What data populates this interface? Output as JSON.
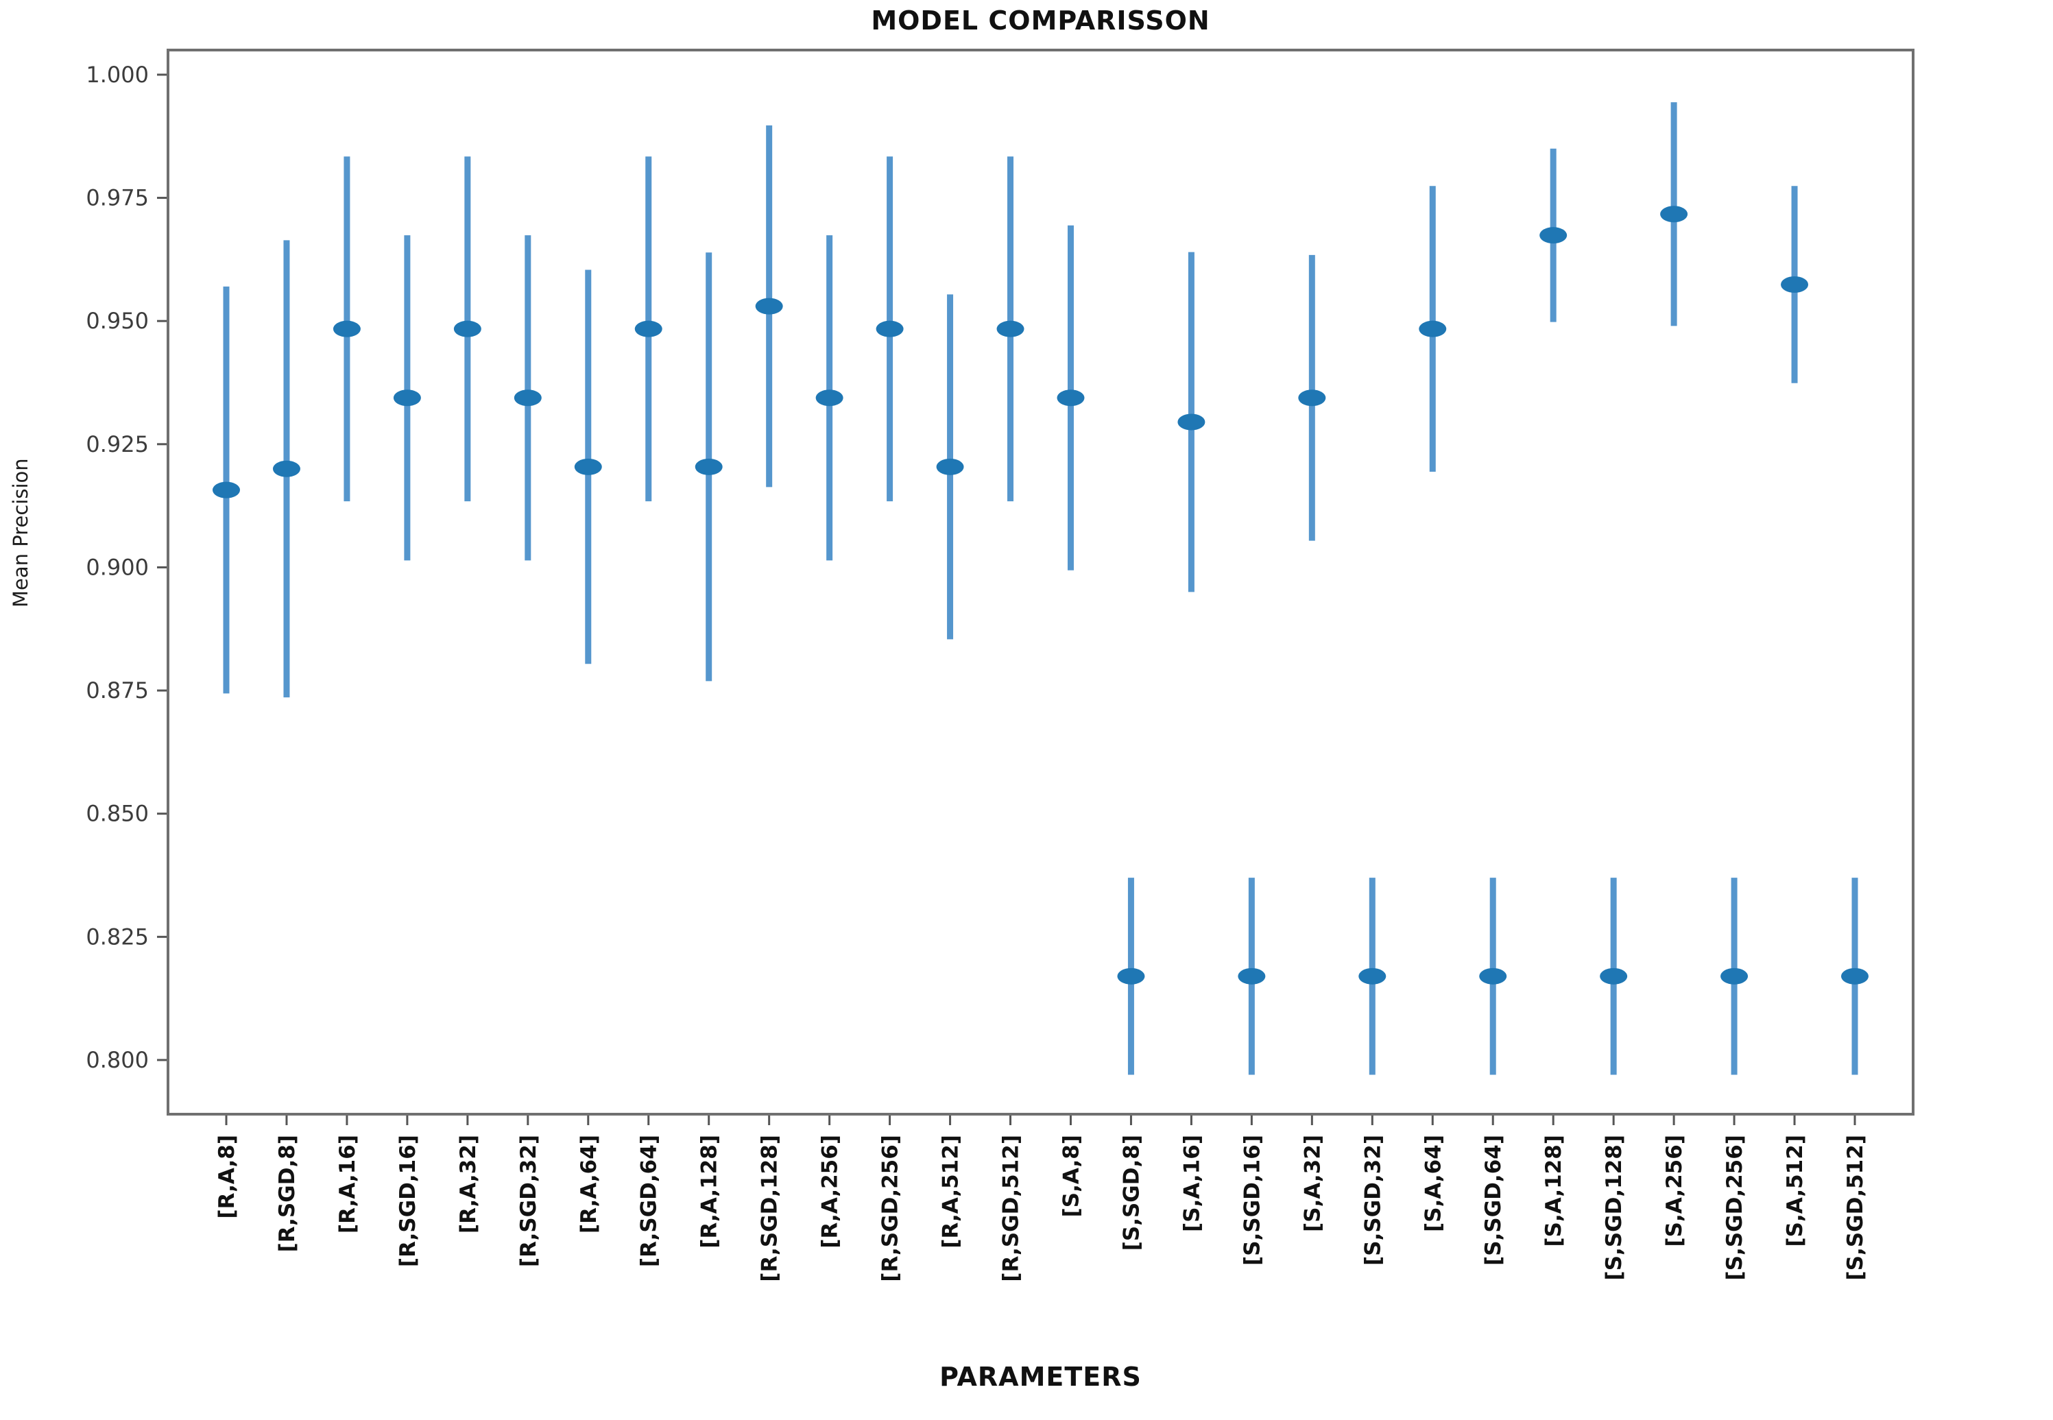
{
  "page": {
    "background": "#ffffff"
  },
  "chart_data": {
    "type": "errorbar",
    "title": "MODEL COMPARISSON",
    "xlabel": "PARAMETERS",
    "ylabel": "Mean Precision",
    "legend_position": "none",
    "grid": false,
    "categories": [
      "[R,A,8]",
      "[R,SGD,8]",
      "[R,A,16]",
      "[R,SGD,16]",
      "[R,A,32]",
      "[R,SGD,32]",
      "[R,A,64]",
      "[R,SGD,64]",
      "[R,A,128]",
      "[R,SGD,128]",
      "[R,A,256]",
      "[R,SGD,256]",
      "[R,A,512]",
      "[R,SGD,512]",
      "[S,A,8]",
      "[S,SGD,8]",
      "[S,A,16]",
      "[S,SGD,16]",
      "[S,A,32]",
      "[S,SGD,32]",
      "[S,A,64]",
      "[S,SGD,64]",
      "[S,A,128]",
      "[S,SGD,128]",
      "[S,A,256]",
      "[S,SGD,256]",
      "[S,A,512]",
      "[S,SGD,512]"
    ],
    "series": [
      {
        "name": "Mean Precision",
        "values": [
          0.9157,
          0.92,
          0.9484,
          0.9344,
          0.9484,
          0.9344,
          0.9204,
          0.9484,
          0.9204,
          0.953,
          0.9344,
          0.9484,
          0.9204,
          0.9484,
          0.9344,
          0.817,
          0.9295,
          0.817,
          0.9344,
          0.817,
          0.9484,
          0.817,
          0.9674,
          0.817,
          0.9717,
          0.817,
          0.9574,
          0.817
        ],
        "err_low": [
          0.8744,
          0.8736,
          0.9134,
          0.9014,
          0.9134,
          0.9014,
          0.8804,
          0.9134,
          0.8769,
          0.9163,
          0.9014,
          0.9134,
          0.8854,
          0.9134,
          0.8994,
          0.797,
          0.895,
          0.797,
          0.9054,
          0.797,
          0.9194,
          0.797,
          0.9498,
          0.797,
          0.949,
          0.797,
          0.9374,
          0.797
        ],
        "err_high": [
          0.957,
          0.9664,
          0.9834,
          0.9674,
          0.9834,
          0.9674,
          0.9604,
          0.9834,
          0.9639,
          0.9897,
          0.9674,
          0.9834,
          0.9554,
          0.9834,
          0.9694,
          0.837,
          0.964,
          0.837,
          0.9634,
          0.837,
          0.9774,
          0.837,
          0.985,
          0.837,
          0.9944,
          0.837,
          0.9774,
          0.837
        ]
      }
    ],
    "yticks": [
      "1.000",
      "0.975",
      "0.950",
      "0.925",
      "0.900",
      "0.875",
      "0.850",
      "0.825",
      "0.800"
    ],
    "ytick_values": [
      1.0,
      0.975,
      0.95,
      0.925,
      0.9,
      0.875,
      0.85,
      0.825,
      0.8
    ],
    "ylim": [
      0.789,
      1.005
    ],
    "colors": {
      "marker": "#1f77b4",
      "whisker": "#5596cd",
      "spine": "#707070",
      "tick": "#555555",
      "tick_label": "#3c3c3c",
      "x_tick_label": "#111111"
    }
  }
}
